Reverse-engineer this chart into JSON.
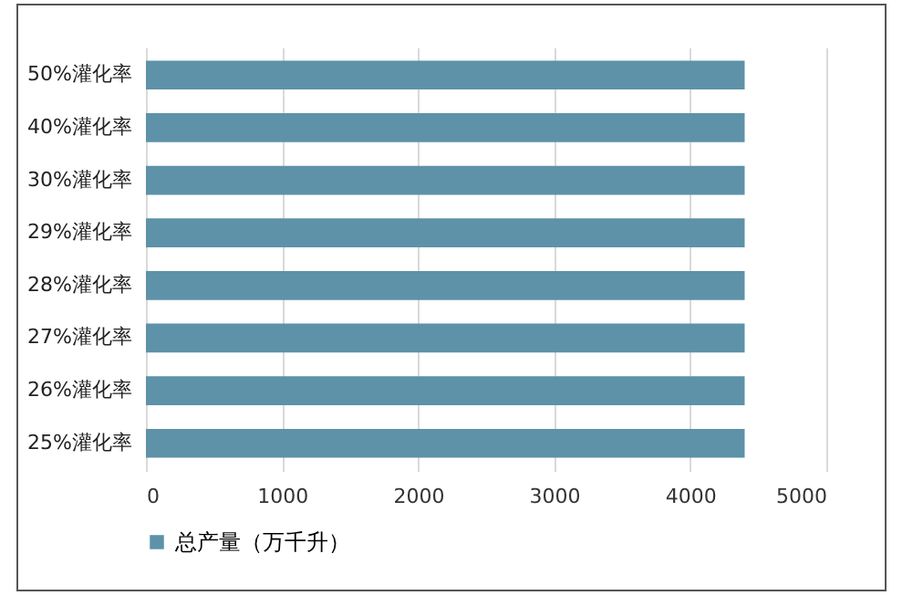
{
  "chart_data": {
    "type": "bar",
    "orientation": "horizontal",
    "categories": [
      "50%灌化率",
      "40%灌化率",
      "30%灌化率",
      "29%灌化率",
      "28%灌化率",
      "27%灌化率",
      "26%灌化率",
      "25%灌化率"
    ],
    "series": [
      {
        "name": "总产量（万千升）",
        "color": "#5d92a8",
        "values": [
          4400,
          4400,
          4400,
          4400,
          4400,
          4400,
          4400,
          4400
        ]
      }
    ],
    "xlim": [
      0,
      5000
    ],
    "xticks": [
      0,
      1000,
      2000,
      3000,
      4000,
      5000
    ],
    "grid": "x",
    "legend": "bottom"
  }
}
